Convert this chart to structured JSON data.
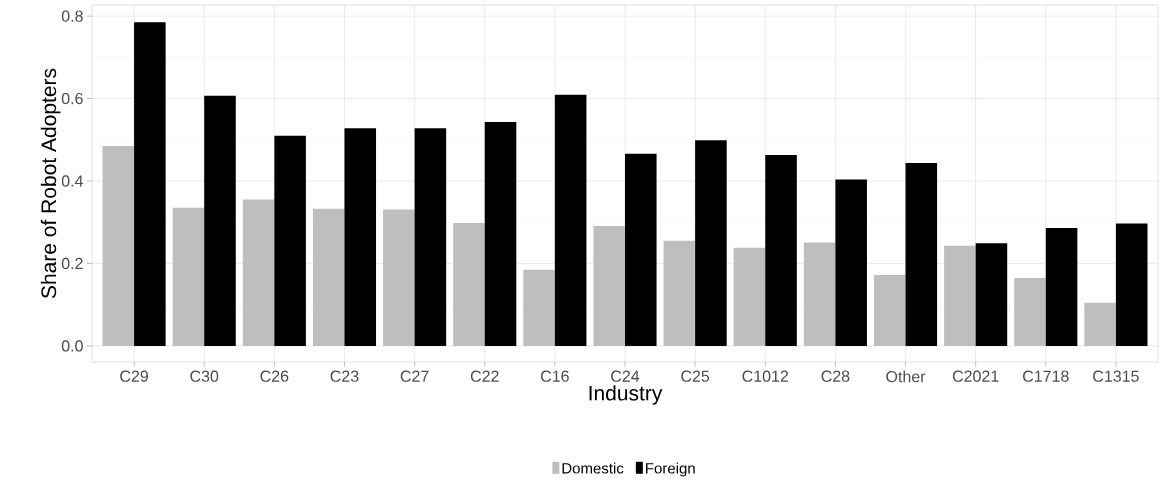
{
  "chart_data": {
    "type": "bar",
    "xlabel": "Industry",
    "ylabel": "Share of Robot Adopters",
    "categories": [
      "C29",
      "C30",
      "C26",
      "C23",
      "C27",
      "C22",
      "C16",
      "C24",
      "C25",
      "C1012",
      "C28",
      "Other",
      "C2021",
      "C1718",
      "C1315"
    ],
    "series": [
      {
        "name": "Domestic",
        "color": "#bebebe",
        "values": [
          0.485,
          0.335,
          0.355,
          0.333,
          0.331,
          0.298,
          0.185,
          0.291,
          0.255,
          0.238,
          0.251,
          0.172,
          0.243,
          0.165,
          0.105
        ]
      },
      {
        "name": "Foreign",
        "color": "#000000",
        "values": [
          0.785,
          0.607,
          0.51,
          0.528,
          0.528,
          0.543,
          0.609,
          0.466,
          0.499,
          0.463,
          0.404,
          0.444,
          0.249,
          0.286,
          0.297
        ]
      }
    ],
    "ylim": [
      -0.039,
      0.827
    ],
    "yticks": [
      {
        "value": 0,
        "label": "0.0"
      },
      0.2,
      0.4,
      0.6,
      0.8
    ],
    "grid": true,
    "legend": "bottom"
  }
}
